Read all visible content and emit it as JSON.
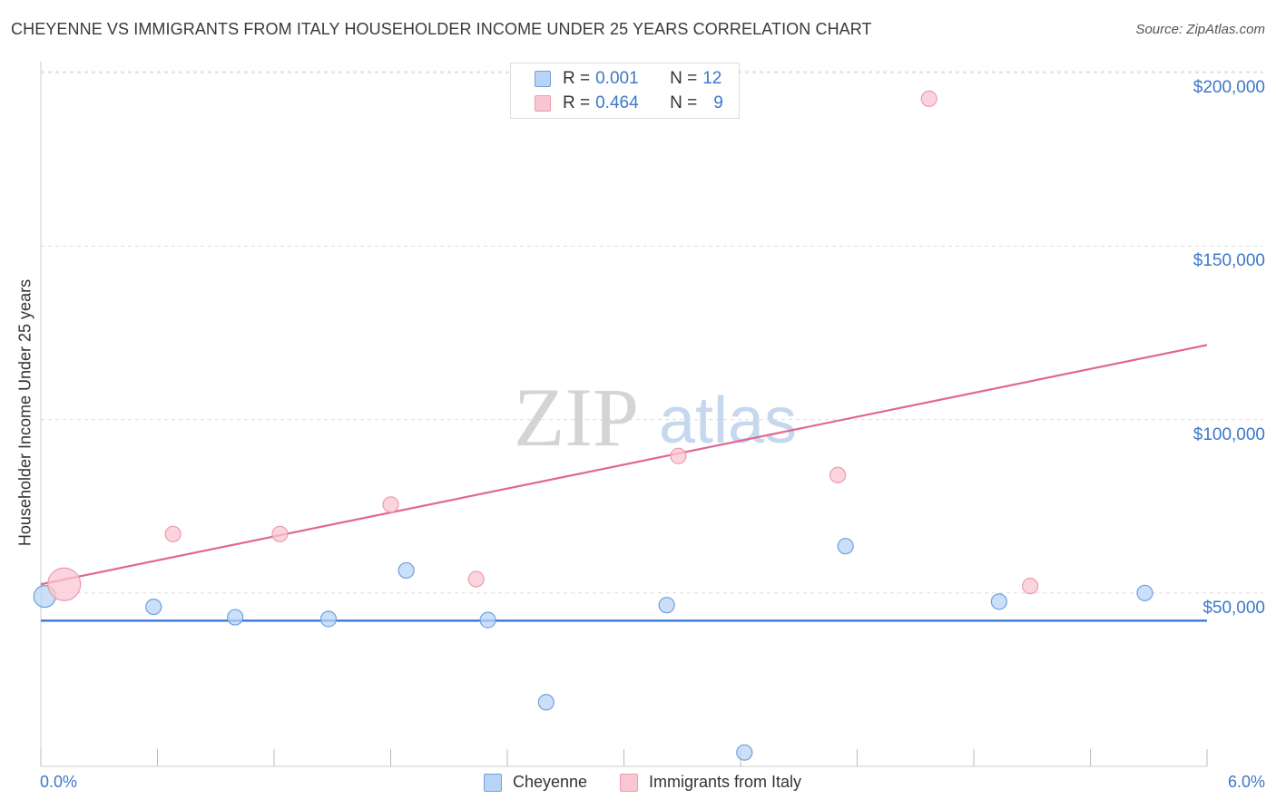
{
  "title": "CHEYENNE VS IMMIGRANTS FROM ITALY HOUSEHOLDER INCOME UNDER 25 YEARS CORRELATION CHART",
  "source": "Source: ZipAtlas.com",
  "watermark": {
    "zip": "ZIP",
    "atlas": "atlas"
  },
  "colors": {
    "blue_fill": "#b8d4f5",
    "blue_stroke": "#6fa0dc",
    "blue_line": "#2f72d0",
    "pink_fill": "#f9c6d3",
    "pink_stroke": "#ec9ab2",
    "pink_line": "#e06890",
    "tick_text": "#3c78c8",
    "grid": "#dddddd"
  },
  "legend": {
    "rows": [
      {
        "r_label": "R =",
        "r_value": "0.001",
        "n_label": "N =",
        "n_value": "12"
      },
      {
        "r_label": "R =",
        "r_value": "0.464",
        "n_label": "N =",
        "n_value": "9"
      }
    ]
  },
  "bottom_legend": {
    "series1": "Cheyenne",
    "series2": "Immigrants from Italy"
  },
  "chart_data": {
    "type": "scatter",
    "title": "CHEYENNE VS IMMIGRANTS FROM ITALY HOUSEHOLDER INCOME UNDER 25 YEARS CORRELATION CHART",
    "xlabel": "",
    "ylabel": "Householder Income Under 25 years",
    "xlim": [
      0,
      6
    ],
    "ylim": [
      0,
      210000
    ],
    "x_tick_labels": [
      "0.0%",
      "6.0%"
    ],
    "y_ticks": [
      50000,
      100000,
      150000,
      200000
    ],
    "y_tick_labels": [
      "$50,000",
      "$100,000",
      "$150,000",
      "$200,000"
    ],
    "grid": true,
    "series": [
      {
        "name": "Cheyenne",
        "r": 0.001,
        "n": 12,
        "trend": {
          "x": [
            0,
            6
          ],
          "y": [
            42000,
            42000
          ]
        },
        "points": [
          {
            "x": 0.02,
            "y": 49000,
            "size": "large"
          },
          {
            "x": 0.58,
            "y": 46000
          },
          {
            "x": 1.0,
            "y": 43000
          },
          {
            "x": 1.48,
            "y": 42500
          },
          {
            "x": 1.88,
            "y": 56500
          },
          {
            "x": 2.3,
            "y": 42200
          },
          {
            "x": 2.6,
            "y": 18500
          },
          {
            "x": 3.22,
            "y": 46500
          },
          {
            "x": 3.62,
            "y": 4000
          },
          {
            "x": 4.14,
            "y": 63500
          },
          {
            "x": 4.93,
            "y": 47500
          },
          {
            "x": 5.68,
            "y": 50000
          }
        ]
      },
      {
        "name": "Immigrants from Italy",
        "r": 0.464,
        "n": 9,
        "trend": {
          "x": [
            0,
            6
          ],
          "y": [
            52500,
            121500
          ]
        },
        "points": [
          {
            "x": 0.12,
            "y": 52500,
            "size": "large"
          },
          {
            "x": 0.68,
            "y": 67000
          },
          {
            "x": 1.23,
            "y": 67000
          },
          {
            "x": 1.8,
            "y": 75500
          },
          {
            "x": 2.24,
            "y": 54000
          },
          {
            "x": 3.28,
            "y": 89500
          },
          {
            "x": 4.1,
            "y": 84000
          },
          {
            "x": 4.57,
            "y": 192500
          },
          {
            "x": 5.09,
            "y": 52000
          }
        ]
      }
    ]
  }
}
